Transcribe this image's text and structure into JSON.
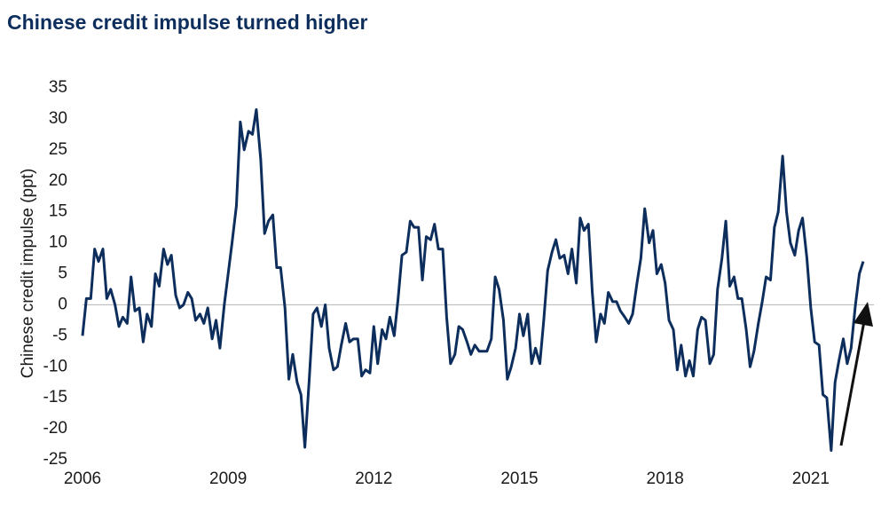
{
  "chart_data": {
    "type": "line",
    "title": "Chinese credit impulse turned higher",
    "y_label": "Chinese credit impulse (ppt)",
    "xlim": [
      2006,
      2022.3
    ],
    "xticks": [
      2006,
      2009,
      2012,
      2015,
      2018,
      2021
    ],
    "ylim": [
      -25,
      35
    ],
    "yticks": [
      -25,
      -20,
      -15,
      -10,
      -5,
      0,
      5,
      10,
      15,
      20,
      25,
      30,
      35
    ],
    "series": [
      {
        "color": "#0d2e5c",
        "x": [
          2006,
          2006.08,
          2006.17,
          2006.25,
          2006.33,
          2006.42,
          2006.5,
          2006.58,
          2006.67,
          2006.75,
          2006.83,
          2006.92,
          2007,
          2007.08,
          2007.17,
          2007.25,
          2007.33,
          2007.42,
          2007.5,
          2007.58,
          2007.67,
          2007.75,
          2007.83,
          2007.92,
          2008,
          2008.08,
          2008.17,
          2008.25,
          2008.33,
          2008.42,
          2008.5,
          2008.58,
          2008.67,
          2008.75,
          2008.83,
          2008.92,
          2009,
          2009.08,
          2009.17,
          2009.25,
          2009.33,
          2009.42,
          2009.5,
          2009.58,
          2009.67,
          2009.75,
          2009.83,
          2009.92,
          2010,
          2010.08,
          2010.17,
          2010.25,
          2010.33,
          2010.42,
          2010.5,
          2010.58,
          2010.67,
          2010.75,
          2010.83,
          2010.92,
          2011,
          2011.08,
          2011.17,
          2011.25,
          2011.33,
          2011.42,
          2011.5,
          2011.58,
          2011.67,
          2011.75,
          2011.83,
          2011.92,
          2012,
          2012.08,
          2012.17,
          2012.25,
          2012.33,
          2012.42,
          2012.5,
          2012.58,
          2012.67,
          2012.75,
          2012.83,
          2012.92,
          2013,
          2013.08,
          2013.17,
          2013.25,
          2013.33,
          2013.42,
          2013.5,
          2013.58,
          2013.67,
          2013.75,
          2013.83,
          2013.92,
          2014,
          2014.08,
          2014.17,
          2014.25,
          2014.33,
          2014.42,
          2014.5,
          2014.58,
          2014.67,
          2014.75,
          2014.83,
          2014.92,
          2015,
          2015.08,
          2015.17,
          2015.25,
          2015.33,
          2015.42,
          2015.5,
          2015.58,
          2015.67,
          2015.75,
          2015.83,
          2015.92,
          2016,
          2016.08,
          2016.17,
          2016.25,
          2016.33,
          2016.42,
          2016.5,
          2016.58,
          2016.67,
          2016.75,
          2016.83,
          2016.92,
          2017,
          2017.08,
          2017.17,
          2017.25,
          2017.33,
          2017.42,
          2017.5,
          2017.58,
          2017.67,
          2017.75,
          2017.83,
          2017.92,
          2018,
          2018.08,
          2018.17,
          2018.25,
          2018.33,
          2018.42,
          2018.5,
          2018.58,
          2018.67,
          2018.75,
          2018.83,
          2018.92,
          2019,
          2019.08,
          2019.17,
          2019.25,
          2019.33,
          2019.42,
          2019.5,
          2019.58,
          2019.67,
          2019.75,
          2019.83,
          2019.92,
          2020,
          2020.08,
          2020.17,
          2020.25,
          2020.33,
          2020.42,
          2020.5,
          2020.58,
          2020.67,
          2020.75,
          2020.83,
          2020.92,
          2021,
          2021.08,
          2021.17,
          2021.25,
          2021.33,
          2021.42,
          2021.5,
          2021.58,
          2021.67,
          2021.75,
          2021.83,
          2021.92,
          2022,
          2022.08
        ],
        "values": [
          -5,
          1,
          1,
          9,
          7,
          9,
          1,
          2.5,
          0,
          -3.5,
          -2,
          -3,
          4.5,
          -1,
          -0.5,
          -6,
          -1.5,
          -3.5,
          5,
          3,
          9,
          6.5,
          8,
          1.5,
          -0.5,
          0,
          2,
          1,
          -2.5,
          -1.5,
          -3,
          -0.5,
          -5.5,
          -2.5,
          -7,
          0,
          5,
          10,
          16,
          29.5,
          25,
          28,
          27.5,
          31.5,
          23.5,
          11.5,
          13.5,
          14.5,
          6,
          6,
          -0.5,
          -12,
          -8,
          -12.5,
          -14.5,
          -23,
          -12,
          -1.5,
          -0.5,
          -3.5,
          0,
          -7,
          -10.5,
          -10,
          -6.5,
          -3,
          -6,
          -5.5,
          -5.5,
          -11.5,
          -10.5,
          -11,
          -3.5,
          -9.5,
          -4,
          -5.5,
          -2,
          -5,
          1,
          8,
          8.5,
          13.5,
          12.5,
          12.5,
          4,
          11,
          10.5,
          13,
          9,
          9,
          -2,
          -9.5,
          -8,
          -3.5,
          -4,
          -6,
          -8,
          -6.5,
          -7.5,
          -7.5,
          -7.5,
          -5.5,
          4.5,
          2.5,
          -2.5,
          -12,
          -10,
          -7,
          -1.5,
          -5,
          -1.5,
          -9.5,
          -7,
          -9.5,
          -2.5,
          5.5,
          8.5,
          10.5,
          7.5,
          8,
          5,
          9,
          3.5,
          14,
          12,
          13,
          2,
          -6,
          -1.5,
          -3,
          2,
          0.5,
          0.5,
          -1,
          -2,
          -3,
          -1.5,
          3.5,
          7.5,
          15.5,
          10,
          12,
          5,
          6.5,
          3.5,
          -2.5,
          -4,
          -10.5,
          -6.5,
          -11.5,
          -9,
          -11.5,
          -4,
          -2,
          -2.5,
          -9.5,
          -8,
          2.5,
          7.5,
          13.5,
          3,
          4.5,
          1,
          1,
          -4,
          -10,
          -7.5,
          -3,
          0.5,
          4.5,
          4,
          12.5,
          15,
          24,
          15,
          10,
          8,
          12,
          14,
          7.5,
          -0.5,
          -6,
          -6.5,
          -14.5,
          -15,
          -23.5,
          -12.5,
          -9,
          -5.5,
          -9.5,
          -7,
          0,
          5,
          7
        ]
      }
    ]
  }
}
